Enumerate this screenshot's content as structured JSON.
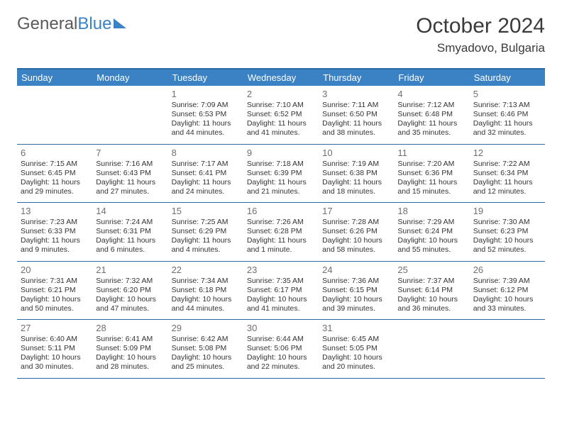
{
  "logo": {
    "part1": "General",
    "part2": "Blue"
  },
  "title": "October 2024",
  "subtitle": "Smyadovo, Bulgaria",
  "colors": {
    "header_bg": "#3b82c4",
    "header_text": "#ffffff",
    "border": "#2d6aa3",
    "daynum": "#707070",
    "body_text": "#333333",
    "logo_gray": "#5a5a5a",
    "logo_blue": "#3b82c4",
    "page_bg": "#ffffff"
  },
  "daynames": [
    "Sunday",
    "Monday",
    "Tuesday",
    "Wednesday",
    "Thursday",
    "Friday",
    "Saturday"
  ],
  "weeks": [
    [
      null,
      null,
      {
        "n": "1",
        "sunrise": "7:09 AM",
        "sunset": "6:53 PM",
        "day_h": 11,
        "day_m": 44
      },
      {
        "n": "2",
        "sunrise": "7:10 AM",
        "sunset": "6:52 PM",
        "day_h": 11,
        "day_m": 41
      },
      {
        "n": "3",
        "sunrise": "7:11 AM",
        "sunset": "6:50 PM",
        "day_h": 11,
        "day_m": 38
      },
      {
        "n": "4",
        "sunrise": "7:12 AM",
        "sunset": "6:48 PM",
        "day_h": 11,
        "day_m": 35
      },
      {
        "n": "5",
        "sunrise": "7:13 AM",
        "sunset": "6:46 PM",
        "day_h": 11,
        "day_m": 32
      }
    ],
    [
      {
        "n": "6",
        "sunrise": "7:15 AM",
        "sunset": "6:45 PM",
        "day_h": 11,
        "day_m": 29
      },
      {
        "n": "7",
        "sunrise": "7:16 AM",
        "sunset": "6:43 PM",
        "day_h": 11,
        "day_m": 27
      },
      {
        "n": "8",
        "sunrise": "7:17 AM",
        "sunset": "6:41 PM",
        "day_h": 11,
        "day_m": 24
      },
      {
        "n": "9",
        "sunrise": "7:18 AM",
        "sunset": "6:39 PM",
        "day_h": 11,
        "day_m": 21
      },
      {
        "n": "10",
        "sunrise": "7:19 AM",
        "sunset": "6:38 PM",
        "day_h": 11,
        "day_m": 18
      },
      {
        "n": "11",
        "sunrise": "7:20 AM",
        "sunset": "6:36 PM",
        "day_h": 11,
        "day_m": 15
      },
      {
        "n": "12",
        "sunrise": "7:22 AM",
        "sunset": "6:34 PM",
        "day_h": 11,
        "day_m": 12
      }
    ],
    [
      {
        "n": "13",
        "sunrise": "7:23 AM",
        "sunset": "6:33 PM",
        "day_h": 11,
        "day_m": 9
      },
      {
        "n": "14",
        "sunrise": "7:24 AM",
        "sunset": "6:31 PM",
        "day_h": 11,
        "day_m": 6
      },
      {
        "n": "15",
        "sunrise": "7:25 AM",
        "sunset": "6:29 PM",
        "day_h": 11,
        "day_m": 4
      },
      {
        "n": "16",
        "sunrise": "7:26 AM",
        "sunset": "6:28 PM",
        "day_h": 11,
        "day_m": 1,
        "singular": true
      },
      {
        "n": "17",
        "sunrise": "7:28 AM",
        "sunset": "6:26 PM",
        "day_h": 10,
        "day_m": 58
      },
      {
        "n": "18",
        "sunrise": "7:29 AM",
        "sunset": "6:24 PM",
        "day_h": 10,
        "day_m": 55
      },
      {
        "n": "19",
        "sunrise": "7:30 AM",
        "sunset": "6:23 PM",
        "day_h": 10,
        "day_m": 52
      }
    ],
    [
      {
        "n": "20",
        "sunrise": "7:31 AM",
        "sunset": "6:21 PM",
        "day_h": 10,
        "day_m": 50
      },
      {
        "n": "21",
        "sunrise": "7:32 AM",
        "sunset": "6:20 PM",
        "day_h": 10,
        "day_m": 47
      },
      {
        "n": "22",
        "sunrise": "7:34 AM",
        "sunset": "6:18 PM",
        "day_h": 10,
        "day_m": 44
      },
      {
        "n": "23",
        "sunrise": "7:35 AM",
        "sunset": "6:17 PM",
        "day_h": 10,
        "day_m": 41
      },
      {
        "n": "24",
        "sunrise": "7:36 AM",
        "sunset": "6:15 PM",
        "day_h": 10,
        "day_m": 39
      },
      {
        "n": "25",
        "sunrise": "7:37 AM",
        "sunset": "6:14 PM",
        "day_h": 10,
        "day_m": 36
      },
      {
        "n": "26",
        "sunrise": "7:39 AM",
        "sunset": "6:12 PM",
        "day_h": 10,
        "day_m": 33
      }
    ],
    [
      {
        "n": "27",
        "sunrise": "6:40 AM",
        "sunset": "5:11 PM",
        "day_h": 10,
        "day_m": 30
      },
      {
        "n": "28",
        "sunrise": "6:41 AM",
        "sunset": "5:09 PM",
        "day_h": 10,
        "day_m": 28
      },
      {
        "n": "29",
        "sunrise": "6:42 AM",
        "sunset": "5:08 PM",
        "day_h": 10,
        "day_m": 25
      },
      {
        "n": "30",
        "sunrise": "6:44 AM",
        "sunset": "5:06 PM",
        "day_h": 10,
        "day_m": 22
      },
      {
        "n": "31",
        "sunrise": "6:45 AM",
        "sunset": "5:05 PM",
        "day_h": 10,
        "day_m": 20
      },
      null,
      null
    ]
  ]
}
